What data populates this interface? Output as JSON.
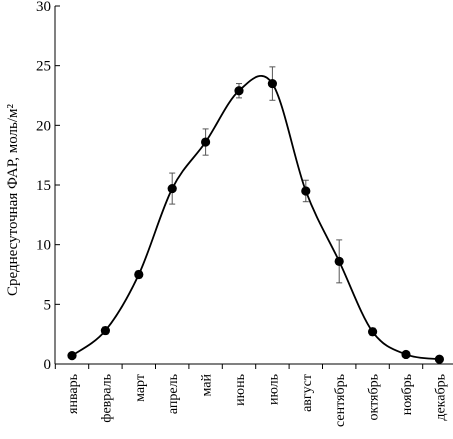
{
  "chart_data": {
    "type": "line",
    "title": "",
    "xlabel": "",
    "ylabel": "Среднесуточная ФАР, моль/м²",
    "ylim": [
      0,
      30
    ],
    "yticks": [
      0,
      5,
      10,
      15,
      20,
      25,
      30
    ],
    "grid": false,
    "legend": "none",
    "smooth": true,
    "categories": [
      "январь",
      "февраль",
      "март",
      "апрель",
      "май",
      "июнь",
      "июль",
      "август",
      "сентябрь",
      "октябрь",
      "ноябрь",
      "декабрь"
    ],
    "series": [
      {
        "values": [
          0.7,
          2.8,
          7.5,
          14.7,
          18.6,
          22.9,
          23.5,
          14.5,
          8.6,
          2.7,
          0.8,
          0.4
        ],
        "errors": [
          0.1,
          0.3,
          0.3,
          1.3,
          1.1,
          0.6,
          1.4,
          0.9,
          1.8,
          0.3,
          0.1,
          0.1
        ]
      }
    ],
    "colors": {
      "line": "#000000",
      "marker": "#000000",
      "axis": "#000000"
    }
  }
}
